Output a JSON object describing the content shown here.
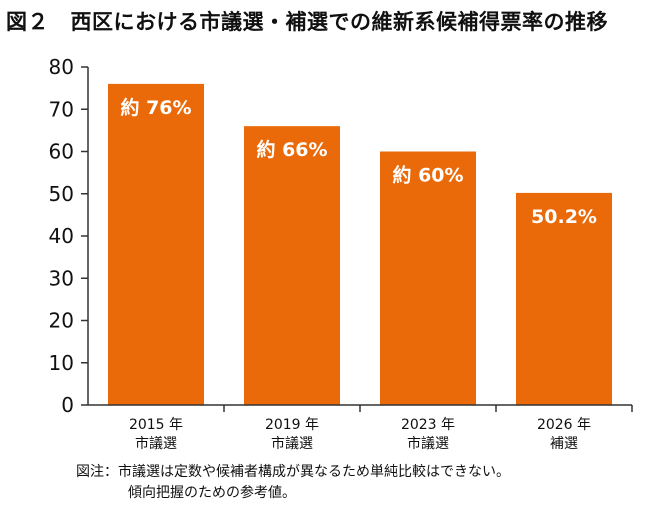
{
  "title": "図２　西区における市議選・補選での維新系候補得票率の推移",
  "colors": {
    "bar": "#EA6A0A",
    "axis": "#333333"
  },
  "chart_data": {
    "type": "bar",
    "title": "図２　西区における市議選・補選での維新系候補得票率の推移",
    "categories": [
      [
        "2015 年",
        "市議選"
      ],
      [
        "2019 年",
        "市議選"
      ],
      [
        "2023 年",
        "市議選"
      ],
      [
        "2026 年",
        "補選"
      ]
    ],
    "values": [
      76,
      66,
      60,
      50.2
    ],
    "data_labels": [
      "約 76%",
      "約 66%",
      "約 60%",
      "50.2%"
    ],
    "ylim": [
      0,
      80
    ],
    "yticks": [
      0,
      10,
      20,
      30,
      40,
      50,
      60,
      70,
      80
    ],
    "xlabel": "",
    "ylabel": "",
    "grid": false,
    "legend": "none"
  },
  "note": {
    "line1": "図注：市議選は定数や候補者構成が異なるため単純比較はできない。",
    "line2": "傾向把握のための参考値。"
  }
}
